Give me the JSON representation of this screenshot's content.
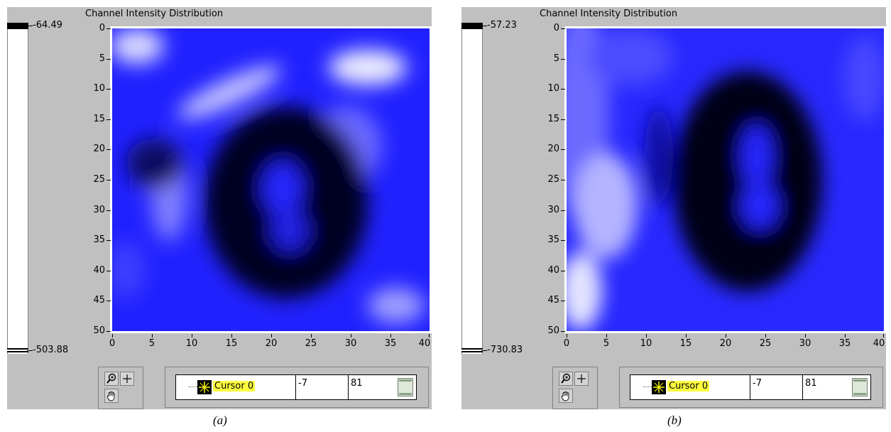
{
  "figures": [
    {
      "id": "a",
      "title": "Channel Intensity Distribution",
      "ramp_max": "-64.49",
      "ramp_min": "-503.88",
      "y_ticks": [
        "0",
        "5",
        "10",
        "15",
        "20",
        "25",
        "30",
        "35",
        "40",
        "45",
        "50"
      ],
      "x_ticks": [
        "0",
        "5",
        "10",
        "15",
        "20",
        "25",
        "30",
        "35",
        "40"
      ],
      "cursor": {
        "name": "Cursor 0",
        "x": "-7",
        "y": "81"
      },
      "caption": "(a)"
    },
    {
      "id": "b",
      "title": "Channel Intensity Distribution",
      "ramp_max": "-57.23",
      "ramp_min": "-730.83",
      "y_ticks": [
        "0",
        "5",
        "10",
        "15",
        "20",
        "25",
        "30",
        "35",
        "40",
        "45",
        "50"
      ],
      "x_ticks": [
        "0",
        "5",
        "10",
        "15",
        "20",
        "25",
        "30",
        "35",
        "40"
      ],
      "cursor": {
        "name": "Cursor 0",
        "x": "-7",
        "y": "81"
      },
      "caption": "(b)"
    }
  ],
  "colors": {
    "dark": "#000000",
    "mid": "#1a1aff",
    "light": "#ffffff",
    "panel": "#c0c0c0",
    "cursor_highlight": "#ffff40"
  },
  "icons": [
    "zoom-icon",
    "crosshair-icon",
    "hand-pan-icon",
    "cursor-crosshair-icon"
  ]
}
